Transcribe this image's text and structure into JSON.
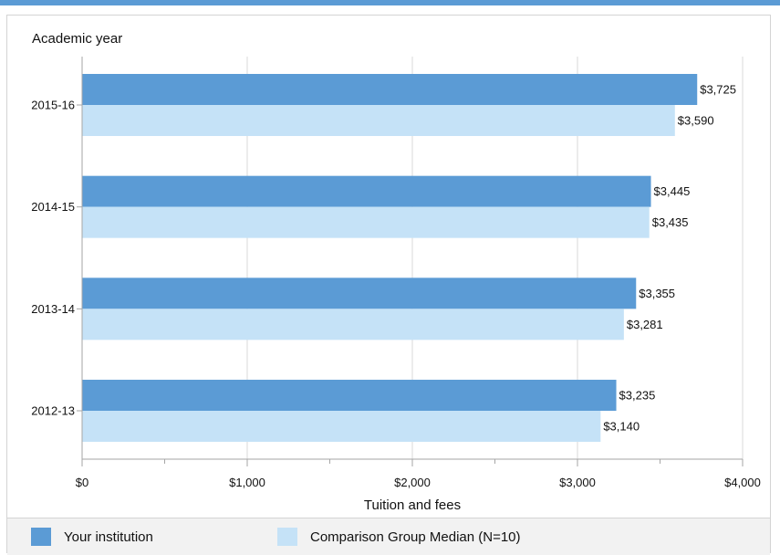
{
  "colors": {
    "primary": "#5b9bd5",
    "secondary": "#c5e2f7",
    "grid": "#d9d9d9",
    "axis": "#a6a6a6"
  },
  "legend": {
    "items": [
      {
        "label": "Your institution",
        "color": "#5b9bd5"
      },
      {
        "label": "Comparison Group Median (N=10)",
        "color": "#c5e2f7"
      }
    ]
  },
  "chart_data": {
    "type": "bar",
    "orientation": "horizontal",
    "title": "",
    "xlabel": "Tuition and fees",
    "ylabel": "Academic year",
    "categories": [
      "2015-16",
      "2014-15",
      "2013-14",
      "2012-13"
    ],
    "series": [
      {
        "name": "Your institution",
        "values": [
          3725,
          3445,
          3355,
          3235
        ],
        "labels": [
          "$3,725",
          "$3,445",
          "$3,355",
          "$3,235"
        ]
      },
      {
        "name": "Comparison Group Median (N=10)",
        "values": [
          3590,
          3435,
          3281,
          3140
        ],
        "labels": [
          "$3,590",
          "$3,435",
          "$3,281",
          "$3,140"
        ]
      }
    ],
    "xlim": [
      0,
      4000
    ],
    "xticks": [
      0,
      1000,
      2000,
      3000,
      4000
    ],
    "xtick_labels": [
      "$0",
      "$1,000",
      "$2,000",
      "$3,000",
      "$4,000"
    ],
    "grid": true,
    "legend_position": "bottom"
  }
}
